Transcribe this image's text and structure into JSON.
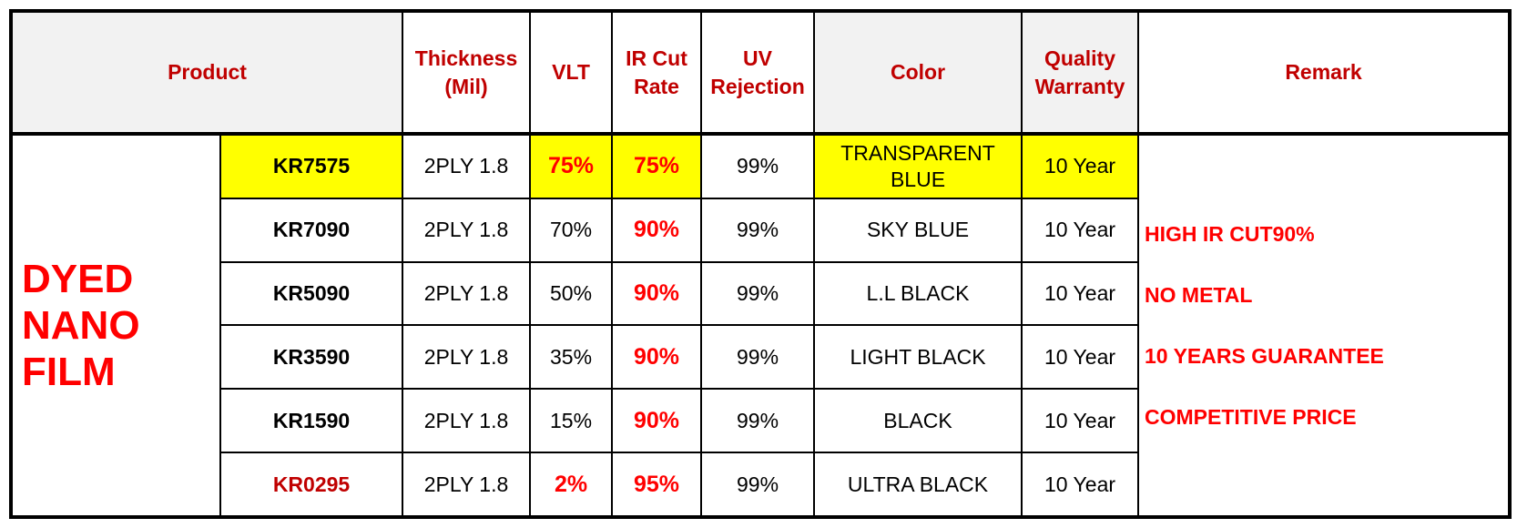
{
  "headers": {
    "product": "Product",
    "thickness_line1": "Thickness",
    "thickness_line2": "(Mil)",
    "vlt": "VLT",
    "ir_line1": "IR Cut",
    "ir_line2": "Rate",
    "uv_line1": "UV",
    "uv_line2": "Rejection",
    "color": "Color",
    "warranty_line1": "Quality",
    "warranty_line2": "Warranty",
    "remark": "Remark"
  },
  "group": {
    "line1": "DYED",
    "line2": "NANO",
    "line3": "FILM"
  },
  "rows": [
    {
      "code": "KR7575",
      "thickness": "2PLY 1.8",
      "vlt": "75%",
      "ir": "75%",
      "uv": "99%",
      "color_line1": "TRANSPARENT",
      "color_line2": "BLUE",
      "warranty": "10 Year"
    },
    {
      "code": "KR7090",
      "thickness": "2PLY 1.8",
      "vlt": "70%",
      "ir": "90%",
      "uv": "99%",
      "color_line1": "SKY BLUE",
      "color_line2": "",
      "warranty": "10 Year"
    },
    {
      "code": "KR5090",
      "thickness": "2PLY 1.8",
      "vlt": "50%",
      "ir": "90%",
      "uv": "99%",
      "color_line1": "L.L BLACK",
      "color_line2": "",
      "warranty": "10 Year"
    },
    {
      "code": "KR3590",
      "thickness": "2PLY 1.8",
      "vlt": "35%",
      "ir": "90%",
      "uv": "99%",
      "color_line1": "LIGHT BLACK",
      "color_line2": "",
      "warranty": "10 Year"
    },
    {
      "code": "KR1590",
      "thickness": "2PLY 1.8",
      "vlt": "15%",
      "ir": "90%",
      "uv": "99%",
      "color_line1": "BLACK",
      "color_line2": "",
      "warranty": "10 Year"
    },
    {
      "code": "KR0295",
      "thickness": "2PLY 1.8",
      "vlt": "2%",
      "ir": "95%",
      "uv": "99%",
      "color_line1": "ULTRA BLACK",
      "color_line2": "",
      "warranty": "10 Year"
    }
  ],
  "remarks": [
    "HIGH IR CUT90%",
    "NO METAL",
    "10 YEARS GUARANTEE",
    "COMPETITIVE PRICE"
  ],
  "colors": {
    "header_text": "#c00000",
    "accent_red": "#ff0000",
    "highlight": "#ffff00",
    "header_bg": "#f2f2f2"
  }
}
